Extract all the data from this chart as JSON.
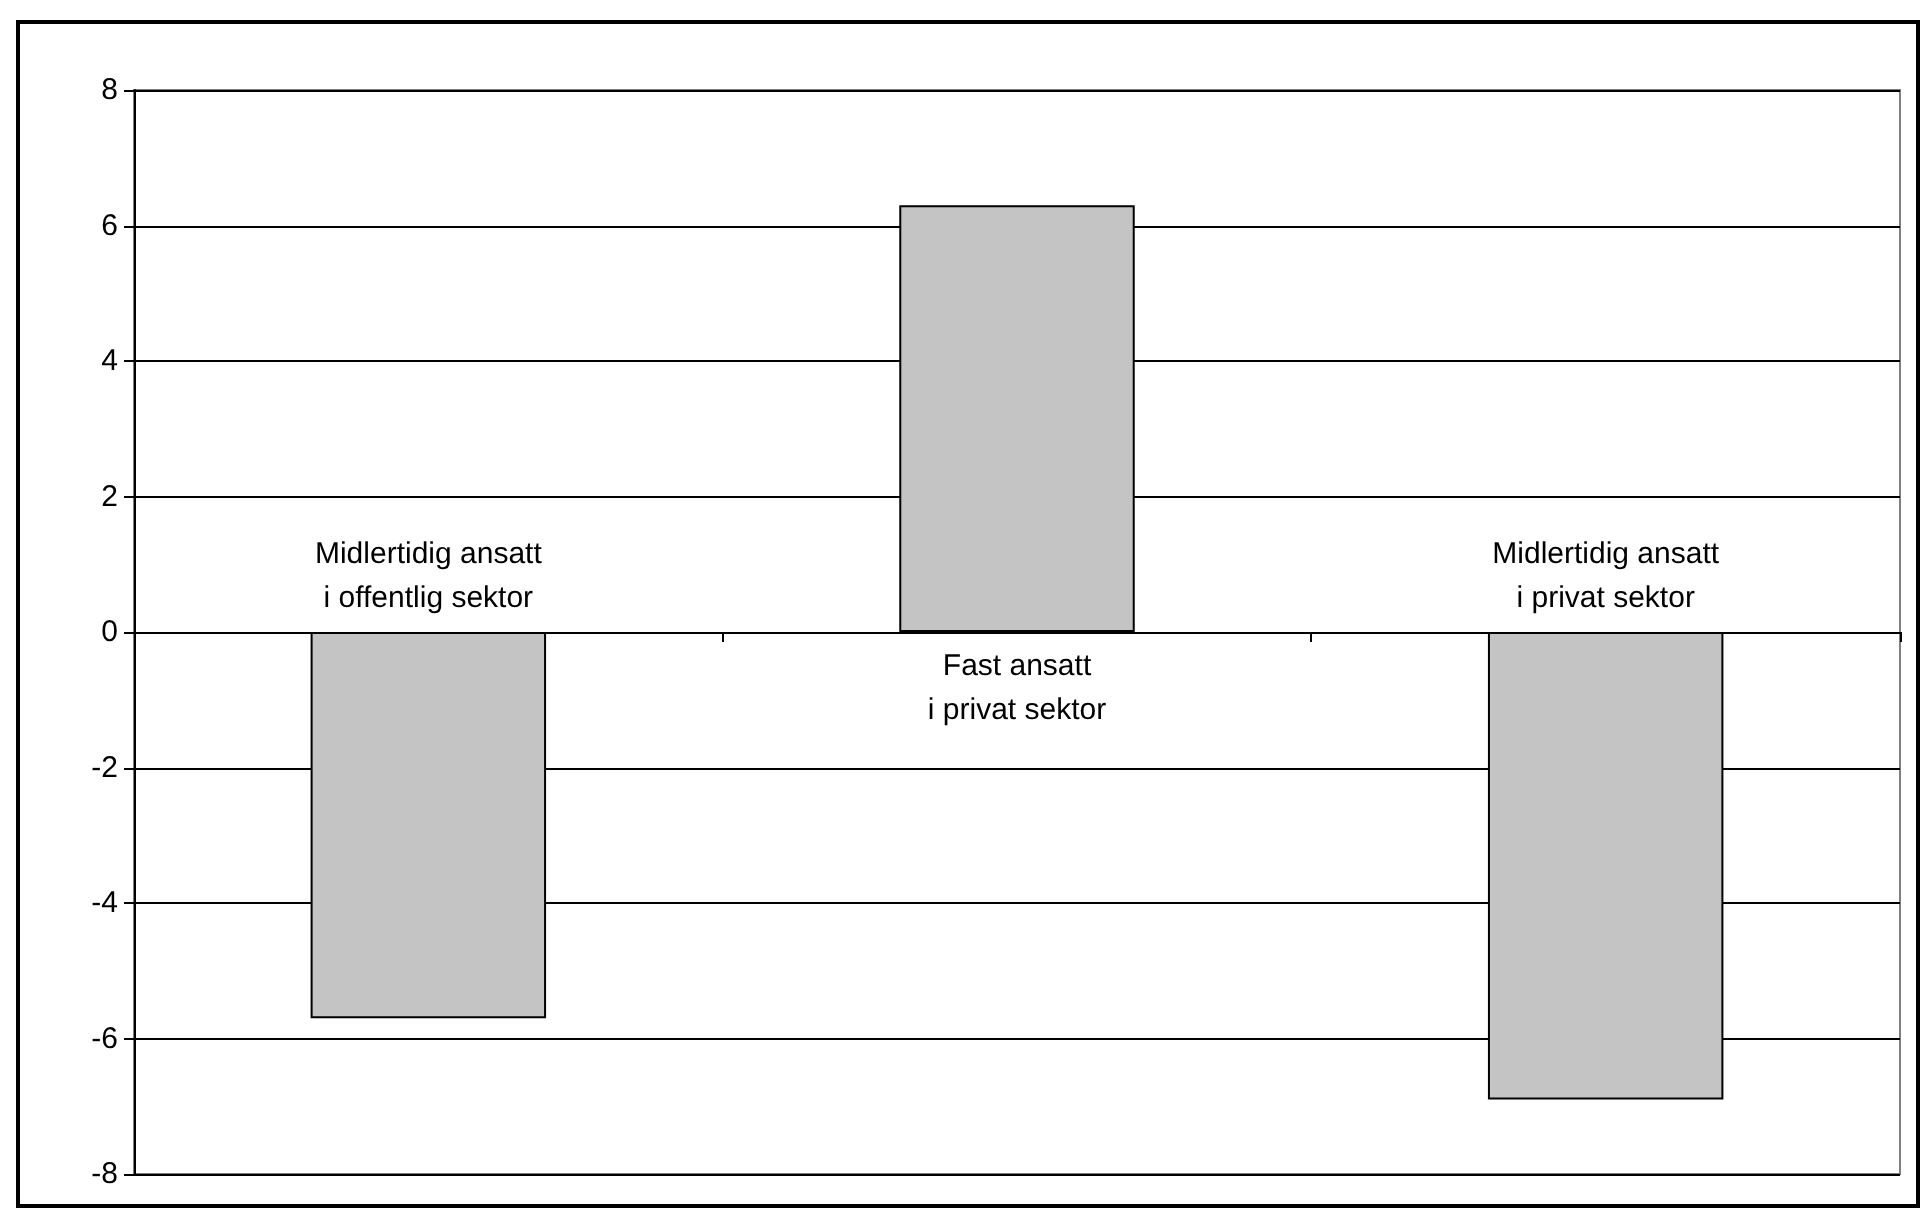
{
  "chart_data": {
    "type": "bar",
    "categories": [
      "Midlertidig ansatt\ni offentlig sektor",
      "Fast ansatt\ni privat sektor",
      "Midlertidig ansatt\ni privat sektor"
    ],
    "values": [
      -5.7,
      6.3,
      -6.9
    ],
    "color": "#c4c4c4",
    "ylim": [
      -8,
      8
    ],
    "yticks": [
      -8,
      -6,
      -4,
      -2,
      0,
      2,
      4,
      6,
      8
    ],
    "grid": "y"
  }
}
